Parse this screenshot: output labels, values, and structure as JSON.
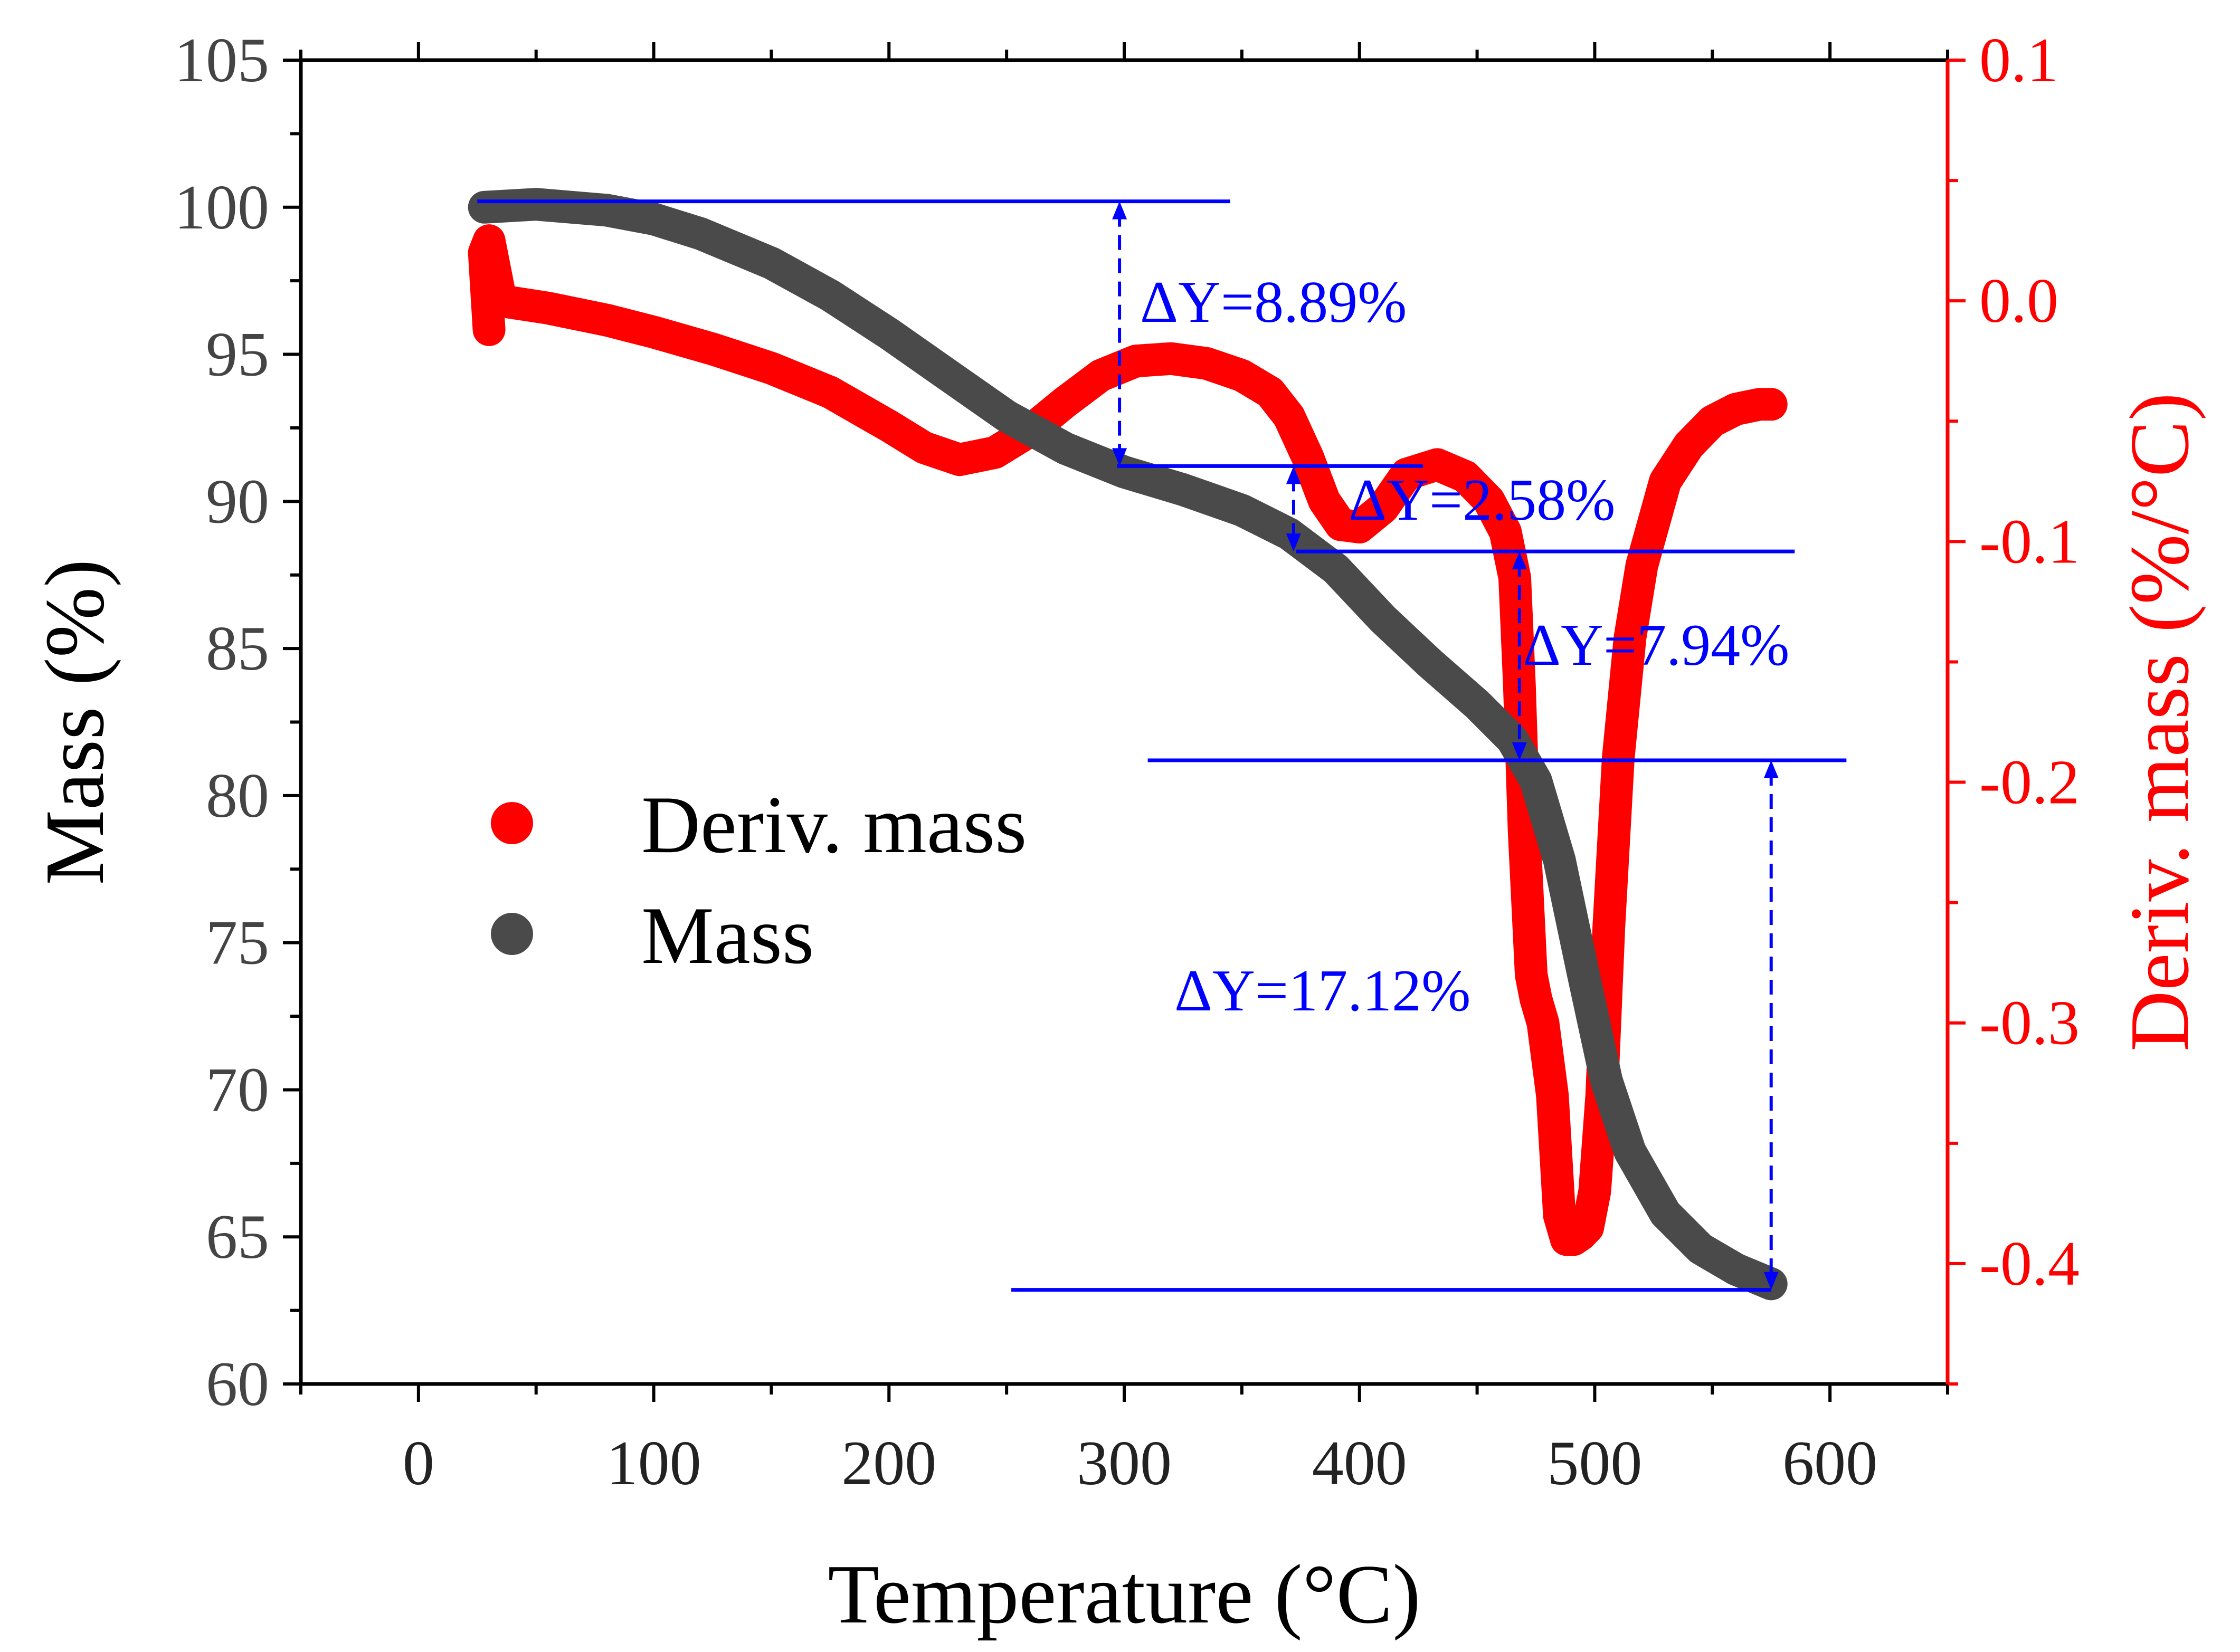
{
  "chart_data": {
    "type": "line",
    "title": "",
    "xlabel": "Temperature (°C)",
    "ylabel": "Mass (%)",
    "y2label": "Deriv. mass (%/°C)",
    "xlim": [
      -50,
      650
    ],
    "ylim": [
      60,
      105
    ],
    "y2lim": [
      -0.45,
      0.1
    ],
    "x_ticks": [
      0,
      100,
      200,
      300,
      400,
      500,
      600
    ],
    "y_ticks": [
      60,
      65,
      70,
      75,
      80,
      85,
      90,
      95,
      100,
      105
    ],
    "y2_ticks": [
      0.1,
      0.0,
      -0.1,
      -0.2,
      -0.3,
      -0.4
    ],
    "y2_tick_labels": [
      "0.1",
      "0.0",
      "-0.1",
      "-0.2",
      "-0.3",
      "-0.4"
    ],
    "colors": {
      "mass": "#4a4a4a",
      "deriv": "#ff0000",
      "annotation": "#0000ff",
      "axis": "#000000",
      "right_axis": "#ff0000"
    },
    "legend": {
      "position": "center-left",
      "entries": [
        {
          "label": "Deriv. mass",
          "series": "deriv"
        },
        {
          "label": "Mass",
          "series": "mass"
        }
      ]
    },
    "series": [
      {
        "name": "Mass",
        "key": "mass",
        "axis": "left",
        "x": [
          28,
          50,
          80,
          100,
          120,
          150,
          175,
          200,
          225,
          250,
          275,
          300,
          325,
          350,
          370,
          390,
          410,
          430,
          450,
          465,
          475,
          485,
          495,
          505,
          515,
          530,
          545,
          560,
          575
        ],
        "y": [
          100.0,
          100.1,
          99.9,
          99.6,
          99.1,
          98.1,
          97.0,
          95.7,
          94.3,
          92.9,
          91.8,
          91.0,
          90.4,
          89.7,
          88.9,
          87.7,
          86.0,
          84.5,
          83.1,
          81.9,
          80.5,
          77.8,
          74.0,
          70.3,
          67.9,
          65.8,
          64.6,
          63.9,
          63.4
        ]
      },
      {
        "name": "Deriv. mass",
        "key": "deriv",
        "axis": "right",
        "x": [
          30,
          28,
          30,
          35,
          55,
          80,
          100,
          125,
          150,
          175,
          200,
          215,
          230,
          245,
          260,
          275,
          290,
          305,
          320,
          335,
          350,
          362,
          370,
          378,
          385,
          392,
          400,
          410,
          420,
          433,
          445,
          455,
          462,
          466,
          468,
          470,
          473,
          475,
          478,
          482,
          485,
          488,
          491,
          494,
          497,
          500,
          503,
          506,
          510,
          515,
          520,
          530,
          540,
          550,
          560,
          570,
          575
        ],
        "y": [
          -0.012,
          0.02,
          0.025,
          0.0,
          -0.003,
          -0.008,
          -0.013,
          -0.02,
          -0.028,
          -0.038,
          -0.052,
          -0.061,
          -0.066,
          -0.063,
          -0.054,
          -0.042,
          -0.031,
          -0.025,
          -0.024,
          -0.026,
          -0.031,
          -0.038,
          -0.048,
          -0.065,
          -0.083,
          -0.093,
          -0.094,
          -0.086,
          -0.072,
          -0.068,
          -0.073,
          -0.083,
          -0.096,
          -0.115,
          -0.16,
          -0.22,
          -0.28,
          -0.29,
          -0.3,
          -0.33,
          -0.38,
          -0.39,
          -0.39,
          -0.388,
          -0.385,
          -0.37,
          -0.33,
          -0.26,
          -0.19,
          -0.14,
          -0.11,
          -0.075,
          -0.06,
          -0.05,
          -0.045,
          -0.043,
          -0.043
        ]
      }
    ],
    "annotations": [
      {
        "label": "ΔY=8.89%",
        "x_from": 298,
        "y_top": 100.2,
        "y_bottom": 91.2,
        "line_top": [
          25,
          345
        ],
        "line_bottom": [
          297,
          427
        ]
      },
      {
        "label": "ΔY=2.58%",
        "x_from": 372,
        "y_top": 91.2,
        "y_bottom": 88.3,
        "line_bottom": [
          373,
          585
        ]
      },
      {
        "label": "ΔY=7.94%",
        "x_from": 468,
        "y_top": 88.3,
        "y_bottom": 81.2,
        "line_bottom": [
          310,
          607
        ]
      },
      {
        "label": "ΔY=17.12%",
        "x_from": 575,
        "y_top": 81.2,
        "y_bottom": 63.2,
        "line_bottom": [
          252,
          575
        ]
      }
    ]
  }
}
